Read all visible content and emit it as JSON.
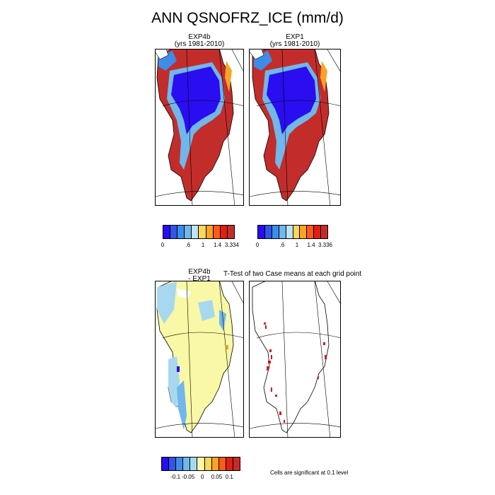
{
  "title": "ANN QSNOFRZ_ICE (mm/d)",
  "panels": {
    "exp4b": {
      "line1": "EXP4b",
      "line2": "(yrs 1981-2010)"
    },
    "exp1": {
      "line1": "EXP1",
      "line2": "(yrs 1981-2010)"
    },
    "diff": {
      "line1": "EXP4b",
      "line2": "- EXP1"
    },
    "ttest": {
      "label": "T-Test of two Case means at each grid point"
    }
  },
  "colorbar_top_left": {
    "colors": [
      "#2a0df0",
      "#3155e8",
      "#3f8ce8",
      "#70b7ec",
      "#bee3f2",
      "#fbd55c",
      "#fba325",
      "#fb5a18",
      "#e01e13",
      "#c22d2b"
    ],
    "ticks": [
      "0",
      ".6",
      "1",
      "1.4",
      "3.334"
    ]
  },
  "colorbar_top_right": {
    "colors": [
      "#2a0df0",
      "#3155e8",
      "#3f8ce8",
      "#70b7ec",
      "#bee3f2",
      "#fbd55c",
      "#fba325",
      "#fb5a18",
      "#e01e13",
      "#c22d2b"
    ],
    "ticks": [
      "0",
      ".6",
      "1",
      "1.4",
      "3.336"
    ]
  },
  "colorbar_diff": {
    "colors": [
      "#2a0df0",
      "#3155e8",
      "#3f8ce8",
      "#70b7ec",
      "#a8d8f0",
      "#f8f8a6",
      "#fbd55c",
      "#fba325",
      "#fb5a18",
      "#e01e13",
      "#c22d2b"
    ],
    "ticks": [
      "-0.1",
      "-0.05",
      "0",
      "0.05",
      "0.1"
    ]
  },
  "significance_note": "Cells are significant at 0.1 level",
  "colors": {
    "ice_low": "#2a0df0",
    "ice_mid": "#70b7ec",
    "ice_high": "#e01e13",
    "diff_neutral": "#f8f8a6",
    "significant": "#e01010"
  }
}
